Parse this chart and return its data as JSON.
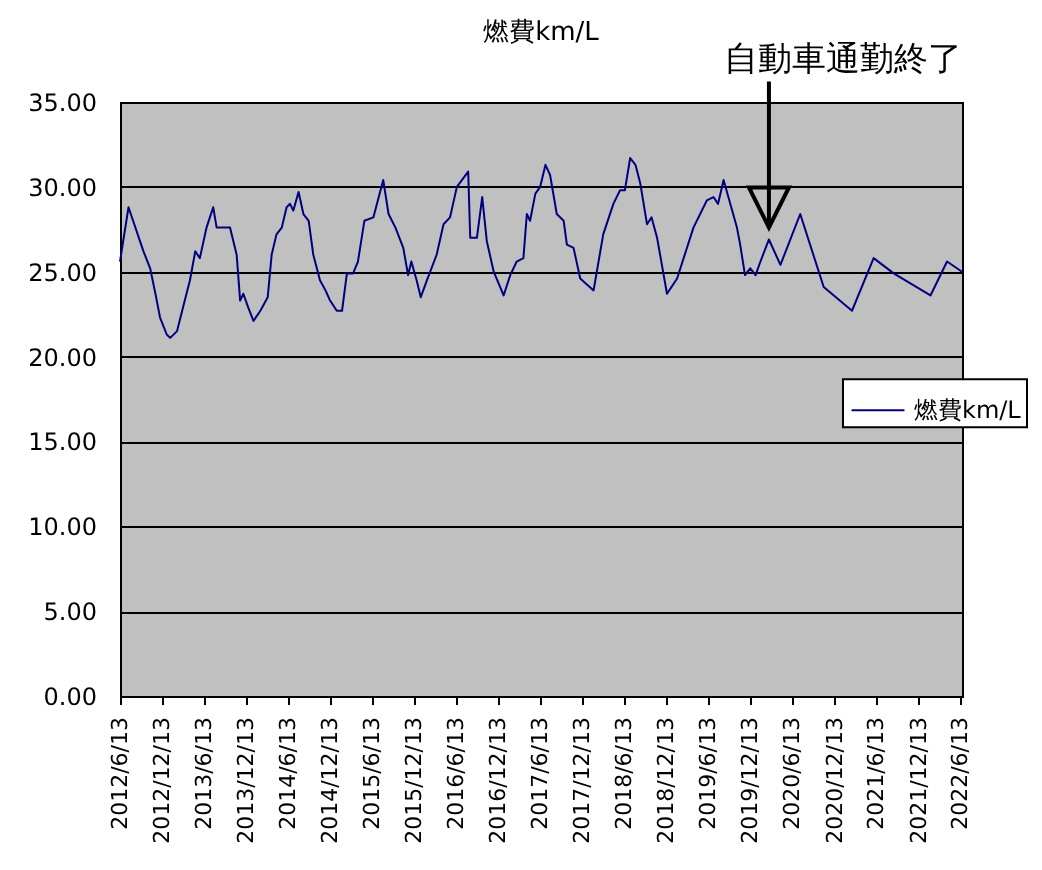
{
  "chart_data": {
    "type": "line",
    "title": "燃費km/L",
    "x": [
      "2012-06-13",
      "2012-07-20",
      "2012-09-23",
      "2012-10-22",
      "2012-11-14",
      "2012-12-04",
      "2013-01-02",
      "2013-01-17",
      "2013-02-16",
      "2013-03-14",
      "2013-04-13",
      "2013-05-06",
      "2013-05-26",
      "2013-06-24",
      "2013-07-23",
      "2013-08-07",
      "2013-10-04",
      "2013-11-02",
      "2013-11-17",
      "2013-12-01",
      "2013-12-22",
      "2014-01-14",
      "2014-02-13",
      "2014-03-17",
      "2014-04-03",
      "2014-04-24",
      "2014-05-17",
      "2014-06-07",
      "2014-06-22",
      "2014-07-06",
      "2014-07-29",
      "2014-08-19",
      "2014-09-11",
      "2014-10-01",
      "2014-10-30",
      "2014-11-23",
      "2014-12-13",
      "2015-01-11",
      "2015-02-03",
      "2015-02-24",
      "2015-03-23",
      "2015-04-13",
      "2015-05-11",
      "2015-06-19",
      "2015-08-01",
      "2015-08-24",
      "2015-09-23",
      "2015-10-27",
      "2015-11-17",
      "2015-12-01",
      "2015-12-24",
      "2016-01-11",
      "2016-02-07",
      "2016-03-20",
      "2016-04-19",
      "2016-05-17",
      "2016-06-16",
      "2016-08-04",
      "2016-08-13",
      "2016-09-11",
      "2016-10-04",
      "2016-10-24",
      "2016-11-23",
      "2017-01-05",
      "2017-02-03",
      "2017-03-03",
      "2017-04-01",
      "2017-04-16",
      "2017-04-30",
      "2017-05-23",
      "2017-06-13",
      "2017-07-06",
      "2017-07-26",
      "2017-08-24",
      "2017-09-23",
      "2017-10-07",
      "2017-11-05",
      "2017-12-04",
      "2018-01-31",
      "2018-03-14",
      "2018-04-27",
      "2018-05-26",
      "2018-06-16",
      "2018-07-09",
      "2018-08-01",
      "2018-08-22",
      "2018-09-20",
      "2018-10-10",
      "2018-11-03",
      "2018-12-16",
      "2019-01-29",
      "2019-04-10",
      "2019-06-07",
      "2019-07-06",
      "2019-07-26",
      "2019-08-19",
      "2019-10-16",
      "2019-10-30",
      "2019-11-20",
      "2019-12-13",
      "2020-01-05",
      "2020-01-26",
      "2020-03-03",
      "2020-04-22",
      "2020-07-17",
      "2020-10-27",
      "2021-02-27",
      "2021-06-01",
      "2021-08-27",
      "2022-02-03",
      "2022-04-16",
      "2022-06-20"
    ],
    "series": [
      {
        "name": "燃費km/L",
        "color": "#000080",
        "values": [
          25.6,
          28.8,
          26.2,
          25.2,
          23.7,
          22.3,
          21.3,
          21.1,
          21.5,
          22.9,
          24.5,
          26.2,
          25.8,
          27.6,
          28.8,
          27.6,
          27.6,
          26.0,
          23.3,
          23.7,
          22.9,
          22.1,
          22.7,
          23.5,
          26.0,
          27.2,
          27.6,
          28.8,
          29.0,
          28.6,
          29.7,
          28.4,
          28.0,
          26.0,
          24.5,
          23.9,
          23.3,
          22.7,
          22.7,
          24.9,
          24.9,
          25.6,
          28.0,
          28.2,
          30.4,
          28.4,
          27.6,
          26.4,
          24.8,
          25.6,
          24.5,
          23.5,
          24.5,
          26.0,
          27.8,
          28.2,
          30.0,
          30.9,
          27.0,
          27.0,
          29.4,
          26.8,
          25.0,
          23.6,
          24.8,
          25.6,
          25.8,
          28.4,
          28.0,
          29.6,
          30.0,
          31.3,
          30.7,
          28.4,
          28.0,
          26.6,
          26.4,
          24.6,
          23.9,
          27.2,
          29.0,
          29.8,
          29.8,
          31.7,
          31.3,
          30.2,
          27.8,
          28.2,
          27.0,
          23.7,
          24.6,
          27.6,
          29.2,
          29.4,
          29.0,
          30.4,
          27.6,
          26.6,
          24.8,
          25.2,
          24.8,
          25.6,
          26.9,
          25.4,
          28.4,
          24.1,
          22.7,
          25.8,
          24.9,
          23.6,
          25.6,
          25.0
        ]
      }
    ],
    "xlim": [
      "2012-06-13",
      "2022-06-20"
    ],
    "xticks": [
      {
        "value": "2012-06-13",
        "label": "2012/6/13"
      },
      {
        "value": "2012-12-13",
        "label": "2012/12/13"
      },
      {
        "value": "2013-06-13",
        "label": "2013/6/13"
      },
      {
        "value": "2013-12-13",
        "label": "2013/12/13"
      },
      {
        "value": "2014-06-13",
        "label": "2014/6/13"
      },
      {
        "value": "2014-12-13",
        "label": "2014/12/13"
      },
      {
        "value": "2015-06-13",
        "label": "2015/6/13"
      },
      {
        "value": "2015-12-13",
        "label": "2015/12/13"
      },
      {
        "value": "2016-06-13",
        "label": "2016/6/13"
      },
      {
        "value": "2016-12-13",
        "label": "2016/12/13"
      },
      {
        "value": "2017-06-13",
        "label": "2017/6/13"
      },
      {
        "value": "2017-12-13",
        "label": "2017/12/13"
      },
      {
        "value": "2018-06-13",
        "label": "2018/6/13"
      },
      {
        "value": "2018-12-13",
        "label": "2018/12/13"
      },
      {
        "value": "2019-06-13",
        "label": "2019/6/13"
      },
      {
        "value": "2019-12-13",
        "label": "2019/12/13"
      },
      {
        "value": "2020-06-13",
        "label": "2020/6/13"
      },
      {
        "value": "2020-12-13",
        "label": "2020/12/13"
      },
      {
        "value": "2021-06-13",
        "label": "2021/6/13"
      },
      {
        "value": "2021-12-13",
        "label": "2021/12/13"
      },
      {
        "value": "2022-06-13",
        "label": "2022/6/13"
      }
    ],
    "ylim": [
      0,
      35
    ],
    "yticks": [
      {
        "value": 0,
        "label": "0.00"
      },
      {
        "value": 5,
        "label": "5.00"
      },
      {
        "value": 10,
        "label": "10.00"
      },
      {
        "value": 15,
        "label": "15.00"
      },
      {
        "value": 20,
        "label": "20.00"
      },
      {
        "value": 25,
        "label": "25.00"
      },
      {
        "value": 30,
        "label": "30.00"
      },
      {
        "value": 35,
        "label": "35.00"
      }
    ],
    "grid": "y",
    "legend": "right",
    "annotations": [
      {
        "text": "自動車通勤終了",
        "x": "2020-03-03",
        "y": 26.9
      }
    ]
  }
}
